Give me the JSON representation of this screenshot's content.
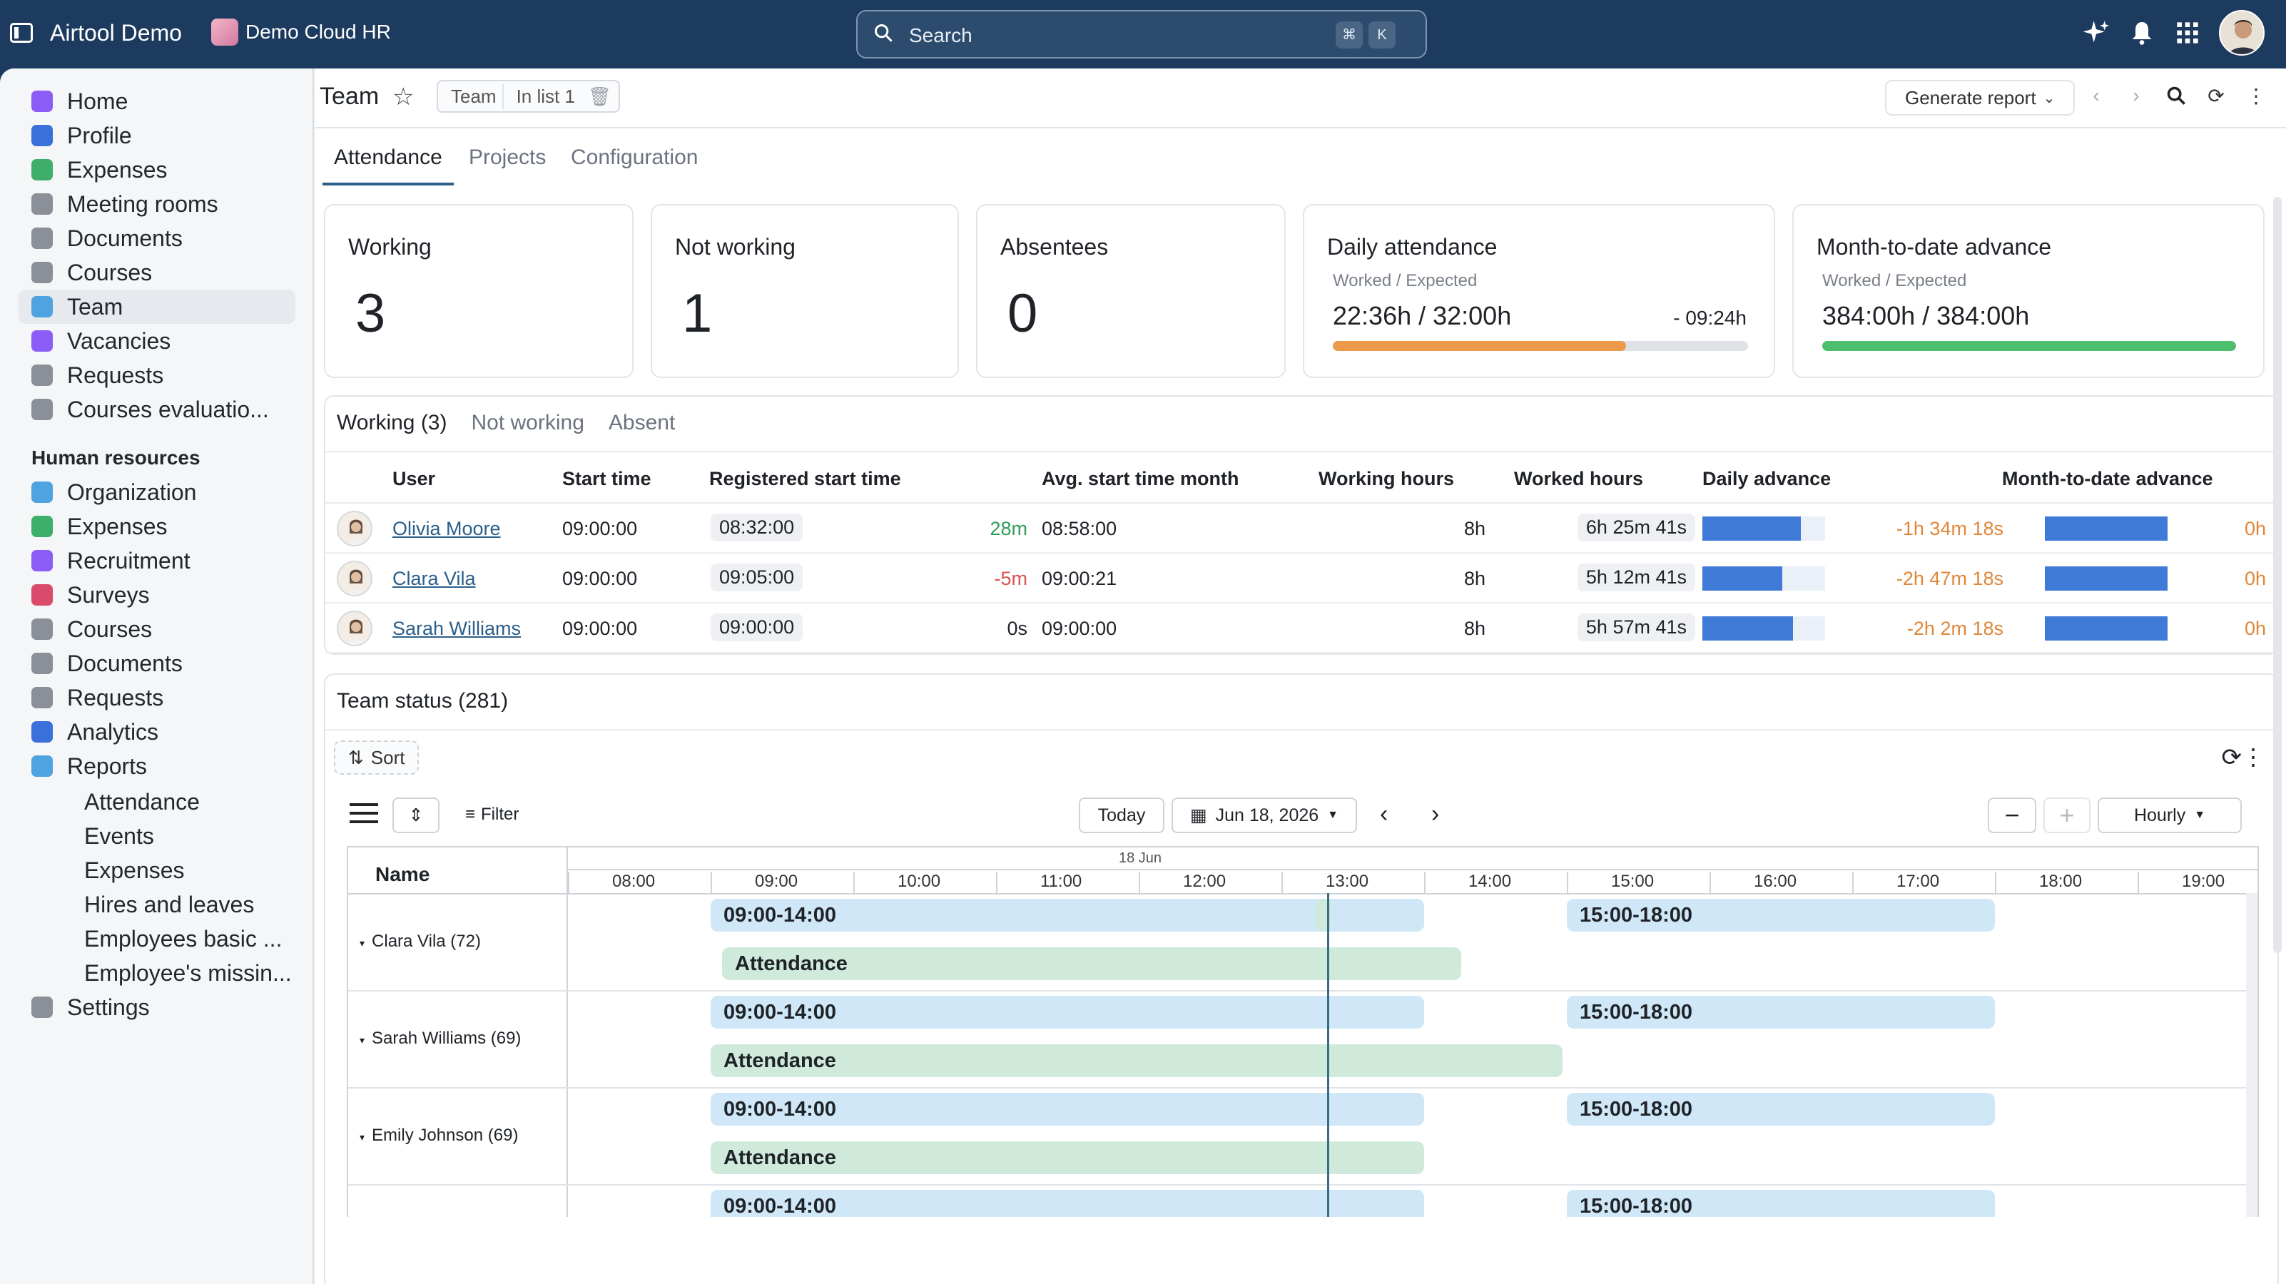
{
  "topbar": {
    "app_title": "Airtool Demo",
    "workspace": "Demo Cloud HR",
    "search_placeholder": "Search",
    "kbd_cmd": "⌘",
    "kbd_k": "K"
  },
  "sidebar": {
    "items": [
      {
        "label": "Home",
        "color": "#8b5cf6"
      },
      {
        "label": "Profile",
        "color": "#3b6fd9"
      },
      {
        "label": "Expenses",
        "color": "#3fae6a"
      },
      {
        "label": "Meeting rooms",
        "color": "#8a8f98"
      },
      {
        "label": "Documents",
        "color": "#8a8f98"
      },
      {
        "label": "Courses",
        "color": "#8a8f98"
      },
      {
        "label": "Team",
        "color": "#4fa3e0"
      },
      {
        "label": "Vacancies",
        "color": "#8b5cf6"
      },
      {
        "label": "Requests",
        "color": "#8a8f98"
      },
      {
        "label": "Courses evaluatio...",
        "color": "#8a8f98"
      }
    ],
    "section_label": "Human resources",
    "hr_items": [
      {
        "label": "Organization",
        "color": "#4fa3e0"
      },
      {
        "label": "Expenses",
        "color": "#3fae6a"
      },
      {
        "label": "Recruitment",
        "color": "#8b5cf6"
      },
      {
        "label": "Surveys",
        "color": "#d94a6b"
      },
      {
        "label": "Courses",
        "color": "#8a8f98"
      },
      {
        "label": "Documents",
        "color": "#8a8f98"
      },
      {
        "label": "Requests",
        "color": "#8a8f98"
      },
      {
        "label": "Analytics",
        "color": "#3b6fd9"
      },
      {
        "label": "Reports",
        "color": "#4fa3e0"
      }
    ],
    "report_subitems": [
      "Attendance",
      "Events",
      "Expenses",
      "Hires and leaves",
      "Employees basic ...",
      "Employee's missin..."
    ],
    "settings_label": "Settings"
  },
  "header": {
    "title": "Team",
    "chip_1": "Team",
    "chip_2": "In list 1",
    "generate_report": "Generate report"
  },
  "tabs": [
    "Attendance",
    "Projects",
    "Configuration"
  ],
  "cards": {
    "working": {
      "title": "Working",
      "value": "3"
    },
    "not_working": {
      "title": "Not working",
      "value": "1"
    },
    "absentees": {
      "title": "Absentees",
      "value": "0"
    },
    "daily": {
      "title": "Daily attendance",
      "sub": "Worked / Expected",
      "value": "22:36h / 32:00h",
      "diff": "- 09:24h",
      "progress": 0.706
    },
    "month": {
      "title": "Month-to-date advance",
      "sub": "Worked / Expected",
      "value": "384:00h / 384:00h",
      "progress": 1.0
    }
  },
  "working_table": {
    "subtabs": [
      "Working (3)",
      "Not working",
      "Absent"
    ],
    "columns": [
      "User",
      "Start time",
      "Registered start time",
      "Avg. start time month",
      "Working hours",
      "Worked hours",
      "Daily advance",
      "Month-to-date advance"
    ],
    "rows": [
      {
        "user": "Olivia Moore",
        "start": "09:00:00",
        "registered": "08:32:00",
        "diff": "28m",
        "avg": "08:58:00",
        "working": "8h",
        "worked": "6h 25m 41s",
        "daily_fill": 0.8,
        "daily_diff": "-1h 34m 18s",
        "month_fill": 1.0,
        "month_diff": "0h"
      },
      {
        "user": "Clara Vila",
        "start": "09:00:00",
        "registered": "09:05:00",
        "diff": "-5m",
        "avg": "09:00:21",
        "working": "8h",
        "worked": "5h 12m 41s",
        "daily_fill": 0.65,
        "daily_diff": "-2h 47m 18s",
        "month_fill": 1.0,
        "month_diff": "0h"
      },
      {
        "user": "Sarah Williams",
        "start": "09:00:00",
        "registered": "09:00:00",
        "diff": "0s",
        "avg": "09:00:00",
        "working": "8h",
        "worked": "5h 57m 41s",
        "daily_fill": 0.74,
        "daily_diff": "-2h 2m 18s",
        "month_fill": 1.0,
        "month_diff": "0h"
      }
    ]
  },
  "team_status": {
    "title": "Team status (281)",
    "sort_label": "Sort",
    "filter_label": "Filter",
    "today_label": "Today",
    "date_label": "Jun 18, 2026",
    "scale_label": "Hourly",
    "name_header": "Name",
    "day_label": "18 Jun",
    "hours": [
      "08:00",
      "09:00",
      "10:00",
      "11:00",
      "12:00",
      "13:00",
      "14:00",
      "15:00",
      "16:00",
      "17:00",
      "18:00",
      "19:00"
    ],
    "people": [
      {
        "name": "Clara Vila (72)",
        "shift1": "09:00-14:00",
        "shift2": "15:00-18:00",
        "attendance": "Attendance"
      },
      {
        "name": "Sarah Williams (69)",
        "shift1": "09:00-14:00",
        "shift2": "15:00-18:00",
        "attendance": "Attendance"
      },
      {
        "name": "Emily Johnson (69)",
        "shift1": "09:00-14:00",
        "shift2": "15:00-18:00",
        "attendance": "Attendance"
      },
      {
        "name": "",
        "shift1": "09:00-14:00",
        "shift2": "15:00-18:00",
        "attendance": ""
      }
    ]
  }
}
